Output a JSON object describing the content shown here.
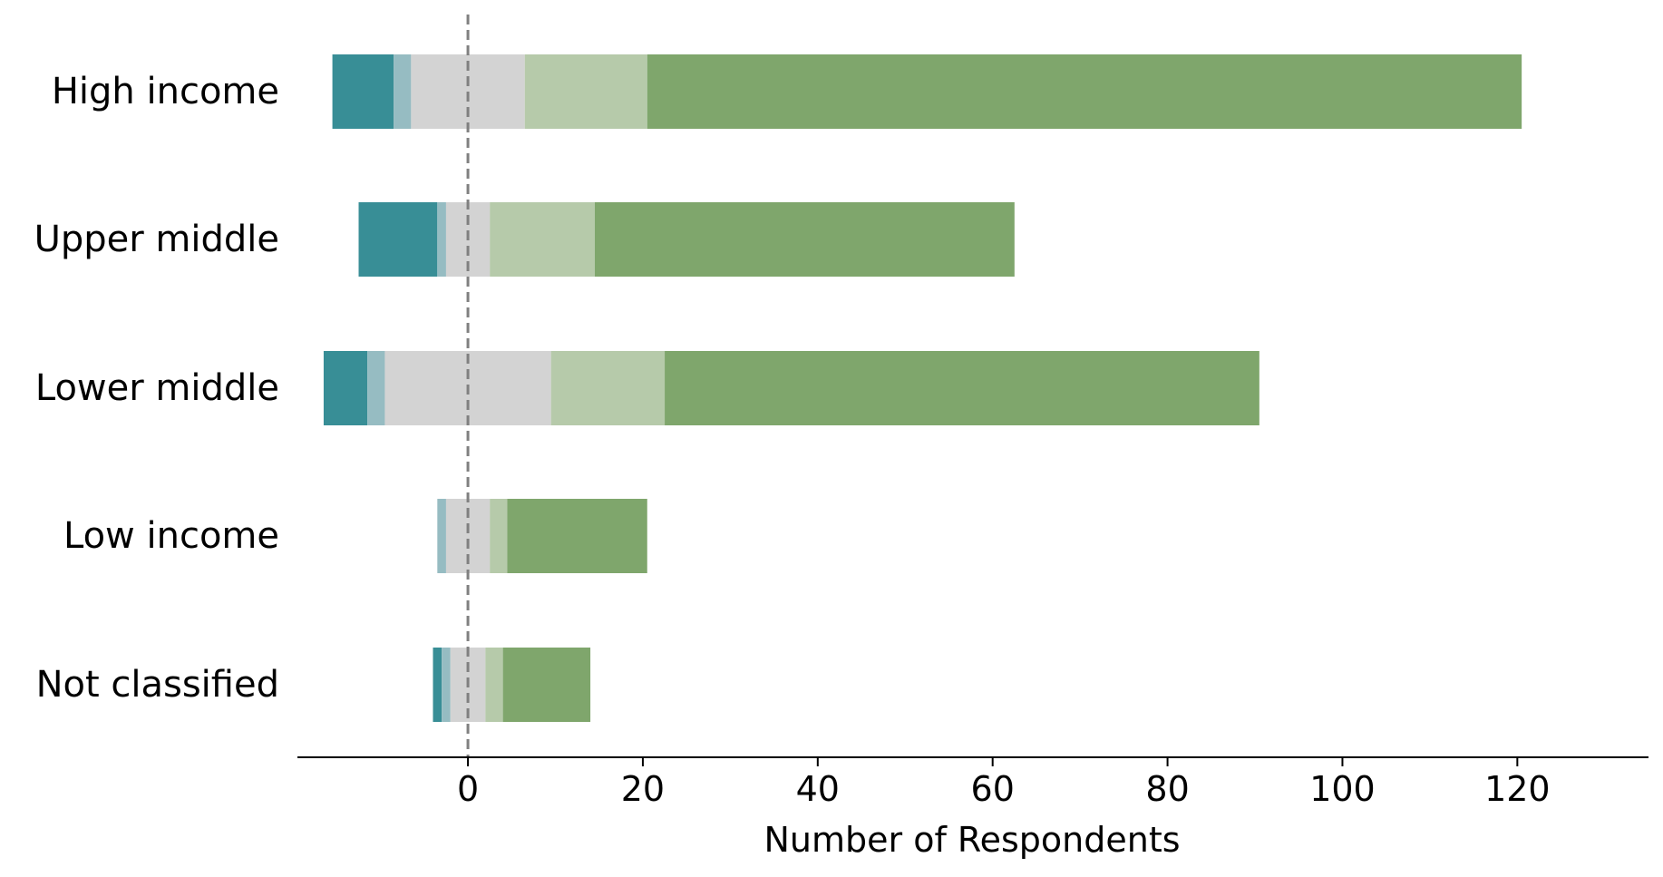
{
  "chart_data": {
    "type": "bar",
    "orientation": "horizontal",
    "stacked": "diverging",
    "categories": [
      "High income",
      "Upper middle",
      "Lower middle",
      "Low income",
      "Not classified"
    ],
    "xlabel": "Number of Respondents",
    "ylabel": "",
    "xlim": [
      -19.5,
      135
    ],
    "xticks": [
      0,
      20,
      40,
      60,
      80,
      100,
      120
    ],
    "reference_line": {
      "x": 0,
      "style": "dashed"
    },
    "grid": false,
    "legend": "none",
    "series": [
      {
        "color": "#388e96",
        "segments": [
          [
            -15.5,
            -8.5
          ],
          [
            -12.5,
            -3.5
          ],
          [
            -16.5,
            -11.5
          ],
          [
            -3.5,
            -3.5
          ],
          [
            -4,
            -3
          ]
        ]
      },
      {
        "color": "#96bcc2",
        "segments": [
          [
            -8.5,
            -6.5
          ],
          [
            -3.5,
            -2.5
          ],
          [
            -11.5,
            -9.5
          ],
          [
            -3.5,
            -2.5
          ],
          [
            -3,
            -2
          ]
        ]
      },
      {
        "color": "#d3d3d3",
        "segments": [
          [
            -6.5,
            6.5
          ],
          [
            -2.5,
            2.5
          ],
          [
            -9.5,
            9.5
          ],
          [
            -2.5,
            2.5
          ],
          [
            -2,
            2
          ]
        ]
      },
      {
        "color": "#b6caaa",
        "segments": [
          [
            6.5,
            20.5
          ],
          [
            2.5,
            14.5
          ],
          [
            9.5,
            22.5
          ],
          [
            2.5,
            4.5
          ],
          [
            2,
            4
          ]
        ]
      },
      {
        "color": "#7fa66c",
        "segments": [
          [
            20.5,
            120.5
          ],
          [
            14.5,
            62.5
          ],
          [
            22.5,
            90.5
          ],
          [
            4.5,
            20.5
          ],
          [
            4,
            14
          ]
        ]
      }
    ]
  }
}
